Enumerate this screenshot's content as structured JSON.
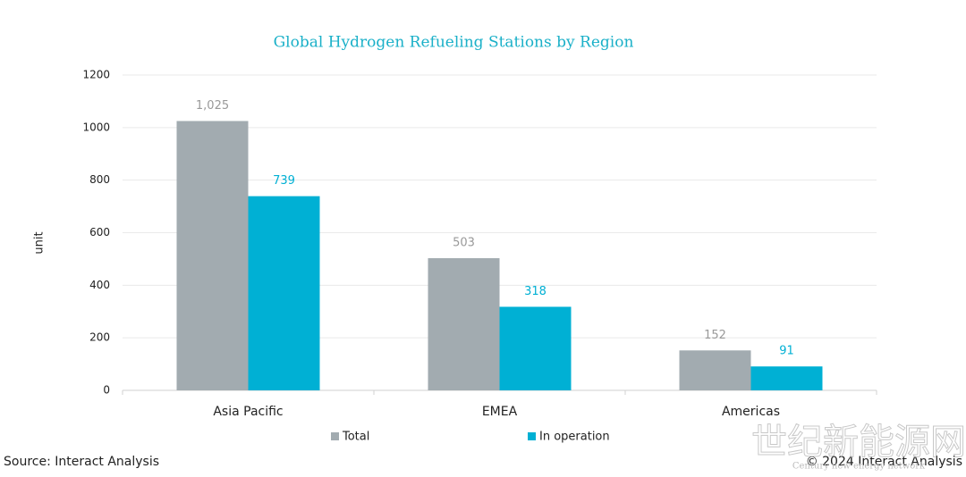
{
  "chart_data": {
    "type": "bar",
    "title": "Global Hydrogen Refueling Stations by Region",
    "y_label": "unit",
    "categories": [
      "Asia Pacific",
      "EMEA",
      "Americas"
    ],
    "series": [
      {
        "name": "Total",
        "color": "#a2abb0",
        "values": [
          1025,
          503,
          152
        ],
        "value_labels": [
          "1,025",
          "503",
          "152"
        ]
      },
      {
        "name": "In operation",
        "color": "#00b0d4",
        "values": [
          739,
          318,
          91
        ]
      }
    ],
    "ylim": [
      0,
      1200
    ],
    "yticks": [
      0,
      200,
      400,
      600,
      800,
      1000,
      1200
    ],
    "grid": true,
    "legend": "bottom"
  },
  "footer": {
    "source": "Source: Interact Analysis",
    "copyright": "© 2024 Interact Analysis"
  },
  "watermark": {
    "title": "世纪新能源网",
    "subtitle": "Century new energy network"
  }
}
